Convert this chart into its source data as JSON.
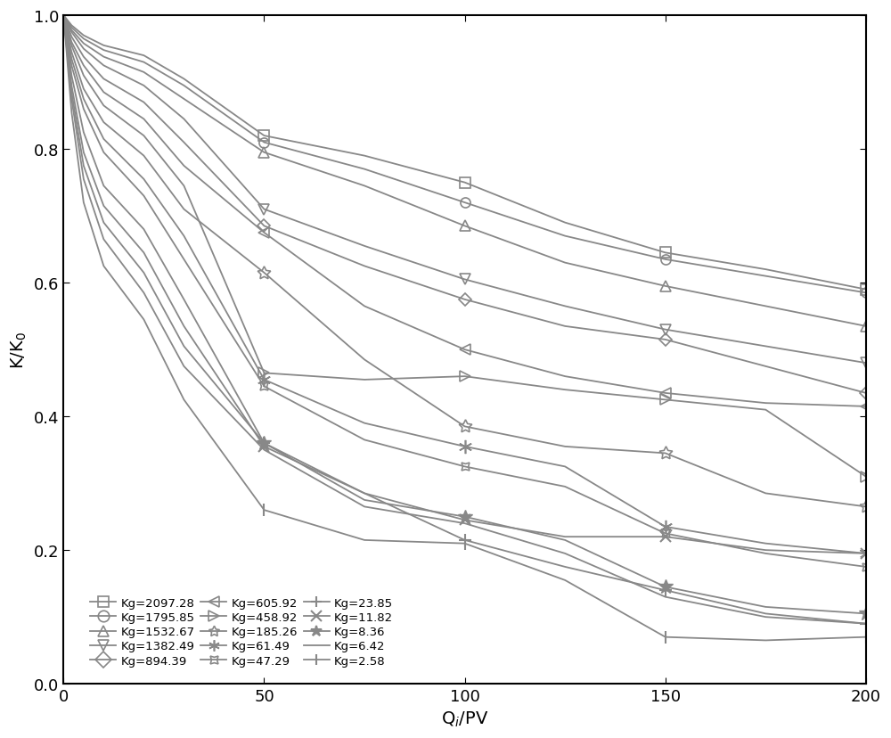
{
  "xlabel": "Q$_i$/PV",
  "ylabel": "K/K$_0$",
  "xlim": [
    0,
    200
  ],
  "ylim": [
    0.0,
    1.0
  ],
  "xticks": [
    0,
    50,
    100,
    150,
    200
  ],
  "yticks": [
    0.0,
    0.2,
    0.4,
    0.6,
    0.8,
    1.0
  ],
  "line_color": "#888888",
  "series": [
    {
      "label": "Kg=2097.28",
      "marker": "s",
      "x": [
        0,
        2,
        5,
        10,
        20,
        30,
        50,
        75,
        100,
        125,
        150,
        175,
        200
      ],
      "y": [
        1.0,
        0.985,
        0.97,
        0.955,
        0.94,
        0.905,
        0.82,
        0.79,
        0.75,
        0.69,
        0.645,
        0.62,
        0.59
      ]
    },
    {
      "label": "Kg=1795.85",
      "marker": "o",
      "x": [
        0,
        2,
        5,
        10,
        20,
        30,
        50,
        75,
        100,
        125,
        150,
        175,
        200
      ],
      "y": [
        1.0,
        0.982,
        0.965,
        0.948,
        0.93,
        0.895,
        0.81,
        0.77,
        0.72,
        0.67,
        0.635,
        0.61,
        0.585
      ]
    },
    {
      "label": "Kg=1532.67",
      "marker": "^",
      "x": [
        0,
        2,
        5,
        10,
        20,
        30,
        50,
        75,
        100,
        125,
        150,
        175,
        200
      ],
      "y": [
        1.0,
        0.978,
        0.958,
        0.938,
        0.915,
        0.875,
        0.795,
        0.745,
        0.685,
        0.63,
        0.595,
        0.565,
        0.535
      ]
    },
    {
      "label": "Kg=1382.49",
      "marker": "v",
      "x": [
        0,
        2,
        5,
        10,
        20,
        30,
        50,
        75,
        100,
        125,
        150,
        175,
        200
      ],
      "y": [
        1.0,
        0.975,
        0.95,
        0.925,
        0.895,
        0.845,
        0.71,
        0.655,
        0.605,
        0.565,
        0.53,
        0.505,
        0.48
      ]
    },
    {
      "label": "Kg=894.39",
      "marker": "D",
      "x": [
        0,
        2,
        5,
        10,
        20,
        30,
        50,
        75,
        100,
        125,
        150,
        175,
        200
      ],
      "y": [
        1.0,
        0.968,
        0.938,
        0.905,
        0.87,
        0.81,
        0.685,
        0.625,
        0.575,
        0.535,
        0.515,
        0.475,
        0.435
      ]
    },
    {
      "label": "Kg=605.92",
      "marker": "<",
      "x": [
        0,
        2,
        5,
        10,
        20,
        30,
        50,
        75,
        100,
        125,
        150,
        175,
        200
      ],
      "y": [
        1.0,
        0.96,
        0.925,
        0.885,
        0.845,
        0.775,
        0.675,
        0.565,
        0.5,
        0.46,
        0.435,
        0.42,
        0.415
      ]
    },
    {
      "label": "Kg=458.92",
      "marker": ">",
      "x": [
        0,
        2,
        5,
        10,
        20,
        30,
        50,
        75,
        100,
        125,
        150,
        175,
        200
      ],
      "y": [
        1.0,
        0.955,
        0.91,
        0.865,
        0.82,
        0.745,
        0.465,
        0.455,
        0.46,
        0.44,
        0.425,
        0.41,
        0.31
      ]
    },
    {
      "label": "Kg=185.26",
      "marker": "star",
      "x": [
        0,
        2,
        5,
        10,
        20,
        30,
        50,
        75,
        100,
        125,
        150,
        175,
        200
      ],
      "y": [
        1.0,
        0.945,
        0.89,
        0.84,
        0.79,
        0.71,
        0.615,
        0.485,
        0.385,
        0.355,
        0.345,
        0.285,
        0.265
      ]
    },
    {
      "label": "Kg=61.49",
      "marker": "star_x",
      "x": [
        0,
        2,
        5,
        10,
        20,
        30,
        50,
        75,
        100,
        125,
        150,
        175,
        200
      ],
      "y": [
        1.0,
        0.935,
        0.875,
        0.815,
        0.755,
        0.67,
        0.455,
        0.39,
        0.355,
        0.325,
        0.235,
        0.21,
        0.195
      ]
    },
    {
      "label": "Kg=47.29",
      "marker": "circle_x",
      "x": [
        0,
        2,
        5,
        10,
        20,
        30,
        50,
        75,
        100,
        125,
        150,
        175,
        200
      ],
      "y": [
        1.0,
        0.925,
        0.86,
        0.795,
        0.73,
        0.635,
        0.445,
        0.365,
        0.325,
        0.295,
        0.225,
        0.195,
        0.175
      ]
    },
    {
      "label": "Kg=23.85",
      "marker": "+",
      "x": [
        0,
        2,
        5,
        10,
        20,
        30,
        50,
        75,
        100,
        125,
        150,
        175,
        200
      ],
      "y": [
        1.0,
        0.91,
        0.825,
        0.745,
        0.68,
        0.575,
        0.36,
        0.285,
        0.215,
        0.175,
        0.14,
        0.105,
        0.09
      ]
    },
    {
      "label": "Kg=11.82",
      "marker": "x",
      "x": [
        0,
        2,
        5,
        10,
        20,
        30,
        50,
        75,
        100,
        125,
        150,
        175,
        200
      ],
      "y": [
        1.0,
        0.895,
        0.795,
        0.715,
        0.645,
        0.535,
        0.355,
        0.285,
        0.245,
        0.22,
        0.22,
        0.2,
        0.195
      ]
    },
    {
      "label": "Kg=8.36",
      "marker": "asterisk",
      "x": [
        0,
        2,
        5,
        10,
        20,
        30,
        50,
        75,
        100,
        125,
        150,
        175,
        200
      ],
      "y": [
        1.0,
        0.885,
        0.775,
        0.69,
        0.615,
        0.505,
        0.36,
        0.275,
        0.25,
        0.215,
        0.145,
        0.115,
        0.105
      ]
    },
    {
      "label": "Kg=6.42",
      "marker": "none",
      "x": [
        0,
        2,
        5,
        10,
        20,
        30,
        50,
        75,
        100,
        125,
        150,
        175,
        200
      ],
      "y": [
        1.0,
        0.875,
        0.755,
        0.665,
        0.585,
        0.475,
        0.35,
        0.265,
        0.24,
        0.195,
        0.13,
        0.1,
        0.09
      ]
    },
    {
      "label": "Kg=2.58",
      "marker": "vline",
      "x": [
        0,
        2,
        5,
        10,
        20,
        30,
        50,
        75,
        100,
        125,
        150,
        175,
        200
      ],
      "y": [
        1.0,
        0.855,
        0.72,
        0.625,
        0.545,
        0.425,
        0.26,
        0.215,
        0.21,
        0.155,
        0.07,
        0.065,
        0.07
      ]
    }
  ]
}
